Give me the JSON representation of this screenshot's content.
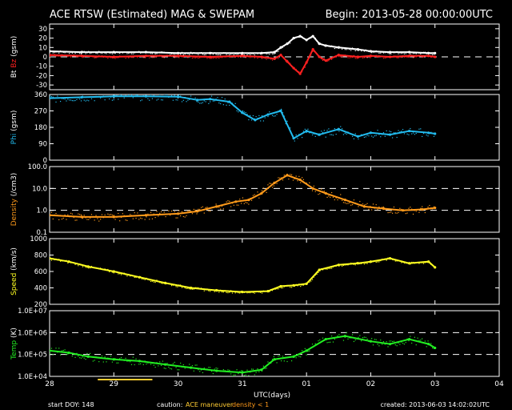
{
  "header": {
    "title": "ACE RTSW (Estimated) MAG & SWEPAM",
    "begin": "Begin: 2013-05-28 00:00:00UTC"
  },
  "footer": {
    "start_doy": "start DOY: 148",
    "caution_label": "caution:",
    "caution_maneuver": "ACE maneuver",
    "caution_density": "density < 1",
    "created": "created: 2013-06-03 14:02:02UTC"
  },
  "colors": {
    "background": "#000000",
    "axes": "#ffffff",
    "bt": "#ffffff",
    "bz": "#ff2020",
    "phi": "#22bbee",
    "density": "#ff9a1a",
    "speed": "#ffff22",
    "temp": "#22ee22",
    "maneuver": "#ffcc33"
  },
  "chart_data": [
    {
      "type": "line",
      "panel": "mag",
      "ylabel_parts": [
        "Bt",
        "Bz",
        "(gsm)"
      ],
      "ylim": [
        -35,
        35
      ],
      "yticks": [
        -30,
        -20,
        -10,
        0,
        10,
        20,
        30
      ],
      "ytick_labels": [
        "-30",
        "-20",
        "-10",
        "0",
        "10",
        "20",
        "30"
      ],
      "dashed_lines": [
        0
      ],
      "series": [
        {
          "name": "Bt",
          "x": [
            0,
            0.5,
            1,
            1.5,
            2,
            2.5,
            3,
            3.3,
            3.5,
            3.6,
            3.7,
            3.8,
            3.9,
            4.0,
            4.1,
            4.2,
            4.3,
            4.5,
            4.8,
            5.0,
            5.3,
            5.6,
            5.9,
            6.0
          ],
          "values": [
            6,
            5,
            5,
            5,
            4,
            4,
            4,
            4,
            5,
            10,
            14,
            20,
            22,
            18,
            22,
            14,
            12,
            10,
            8,
            6,
            5,
            5,
            4,
            4
          ]
        },
        {
          "name": "Bz",
          "x": [
            0,
            0.5,
            1,
            1.5,
            2,
            2.5,
            3,
            3.3,
            3.5,
            3.6,
            3.7,
            3.8,
            3.9,
            4.0,
            4.1,
            4.2,
            4.3,
            4.5,
            4.8,
            5.0,
            5.3,
            5.6,
            5.9,
            6.0
          ],
          "values": [
            2,
            1,
            0,
            1,
            1,
            0,
            1,
            0,
            -2,
            2,
            -5,
            -12,
            -18,
            -6,
            8,
            0,
            -4,
            2,
            0,
            1,
            0,
            1,
            1,
            0
          ]
        }
      ]
    },
    {
      "type": "scatter",
      "panel": "phi",
      "ylabel": "Phi (gsm)",
      "ylim": [
        0,
        360
      ],
      "yticks": [
        0,
        90,
        180,
        270,
        360
      ],
      "ytick_labels": [
        "0",
        "90",
        "180",
        "270",
        "360"
      ],
      "series": [
        {
          "name": "Phi",
          "x": [
            0,
            0.5,
            1,
            1.5,
            2,
            2.3,
            2.5,
            2.8,
            3.0,
            3.2,
            3.4,
            3.6,
            3.8,
            4.0,
            4.2,
            4.5,
            4.8,
            5.0,
            5.3,
            5.6,
            5.9,
            6.0
          ],
          "values": [
            340,
            345,
            350,
            350,
            348,
            330,
            335,
            320,
            260,
            220,
            250,
            270,
            120,
            160,
            140,
            170,
            130,
            150,
            140,
            160,
            150,
            145
          ]
        }
      ]
    },
    {
      "type": "scatter",
      "panel": "density",
      "ylabel": "Density (/cm3)",
      "yscale": "log",
      "ylim": [
        0.1,
        100
      ],
      "yticks": [
        0.1,
        1,
        10,
        100
      ],
      "ytick_labels": [
        "0.1",
        "1.0",
        "10.0",
        "100.0"
      ],
      "dashed_lines": [
        1,
        10
      ],
      "series": [
        {
          "name": "Density",
          "x": [
            0,
            0.5,
            1,
            1.5,
            2,
            2.3,
            2.6,
            2.9,
            3.1,
            3.3,
            3.5,
            3.7,
            3.9,
            4.1,
            4.3,
            4.6,
            4.9,
            5.2,
            5.5,
            5.8,
            6.0
          ],
          "values": [
            0.6,
            0.5,
            0.5,
            0.6,
            0.7,
            0.9,
            1.5,
            2.5,
            3,
            6,
            18,
            40,
            25,
            10,
            6,
            3,
            1.5,
            1.2,
            1.0,
            1.1,
            1.3
          ]
        }
      ]
    },
    {
      "type": "line",
      "panel": "speed",
      "ylabel": "Speed (km/s)",
      "ylim": [
        200,
        1000
      ],
      "yticks": [
        200,
        400,
        600,
        800,
        1000
      ],
      "ytick_labels": [
        "200",
        "400",
        "600",
        "800",
        "1000"
      ],
      "series": [
        {
          "name": "Speed",
          "x": [
            0,
            0.3,
            0.6,
            1.0,
            1.4,
            1.8,
            2.2,
            2.6,
            3.0,
            3.4,
            3.6,
            3.8,
            4.0,
            4.2,
            4.5,
            4.8,
            5.0,
            5.3,
            5.6,
            5.9,
            6.0
          ],
          "values": [
            760,
            720,
            660,
            600,
            530,
            460,
            400,
            370,
            350,
            360,
            420,
            430,
            450,
            620,
            680,
            700,
            720,
            760,
            700,
            720,
            650
          ]
        }
      ]
    },
    {
      "type": "scatter",
      "panel": "temp",
      "ylabel": "Temp (K)",
      "yscale": "log",
      "ylim": [
        10000,
        10000000
      ],
      "yticks": [
        10000,
        100000,
        1000000,
        10000000
      ],
      "ytick_labels": [
        "1.0E+04",
        "1.0E+05",
        "1.0E+06",
        "1.0E+07"
      ],
      "dashed_lines": [
        100000,
        1000000
      ],
      "series": [
        {
          "name": "Temp",
          "x": [
            0,
            0.3,
            0.6,
            1.0,
            1.4,
            1.8,
            2.2,
            2.6,
            3.0,
            3.3,
            3.5,
            3.8,
            4.0,
            4.3,
            4.6,
            5.0,
            5.3,
            5.6,
            5.9,
            6.0
          ],
          "values": [
            150000,
            120000,
            80000,
            60000,
            50000,
            35000,
            25000,
            18000,
            15000,
            20000,
            60000,
            80000,
            150000,
            500000,
            700000,
            400000,
            300000,
            500000,
            300000,
            200000
          ]
        }
      ]
    }
  ],
  "x_axis": {
    "xlim": [
      0,
      7
    ],
    "ticks": [
      0,
      1,
      2,
      3,
      4,
      5,
      6,
      7
    ],
    "tick_labels": [
      "28",
      "29",
      "30",
      "31",
      "01",
      "02",
      "03",
      "04"
    ],
    "xlabel": "UTC(days)"
  },
  "maneuver_bar": {
    "x_start": 0.75,
    "x_end": 1.6
  }
}
